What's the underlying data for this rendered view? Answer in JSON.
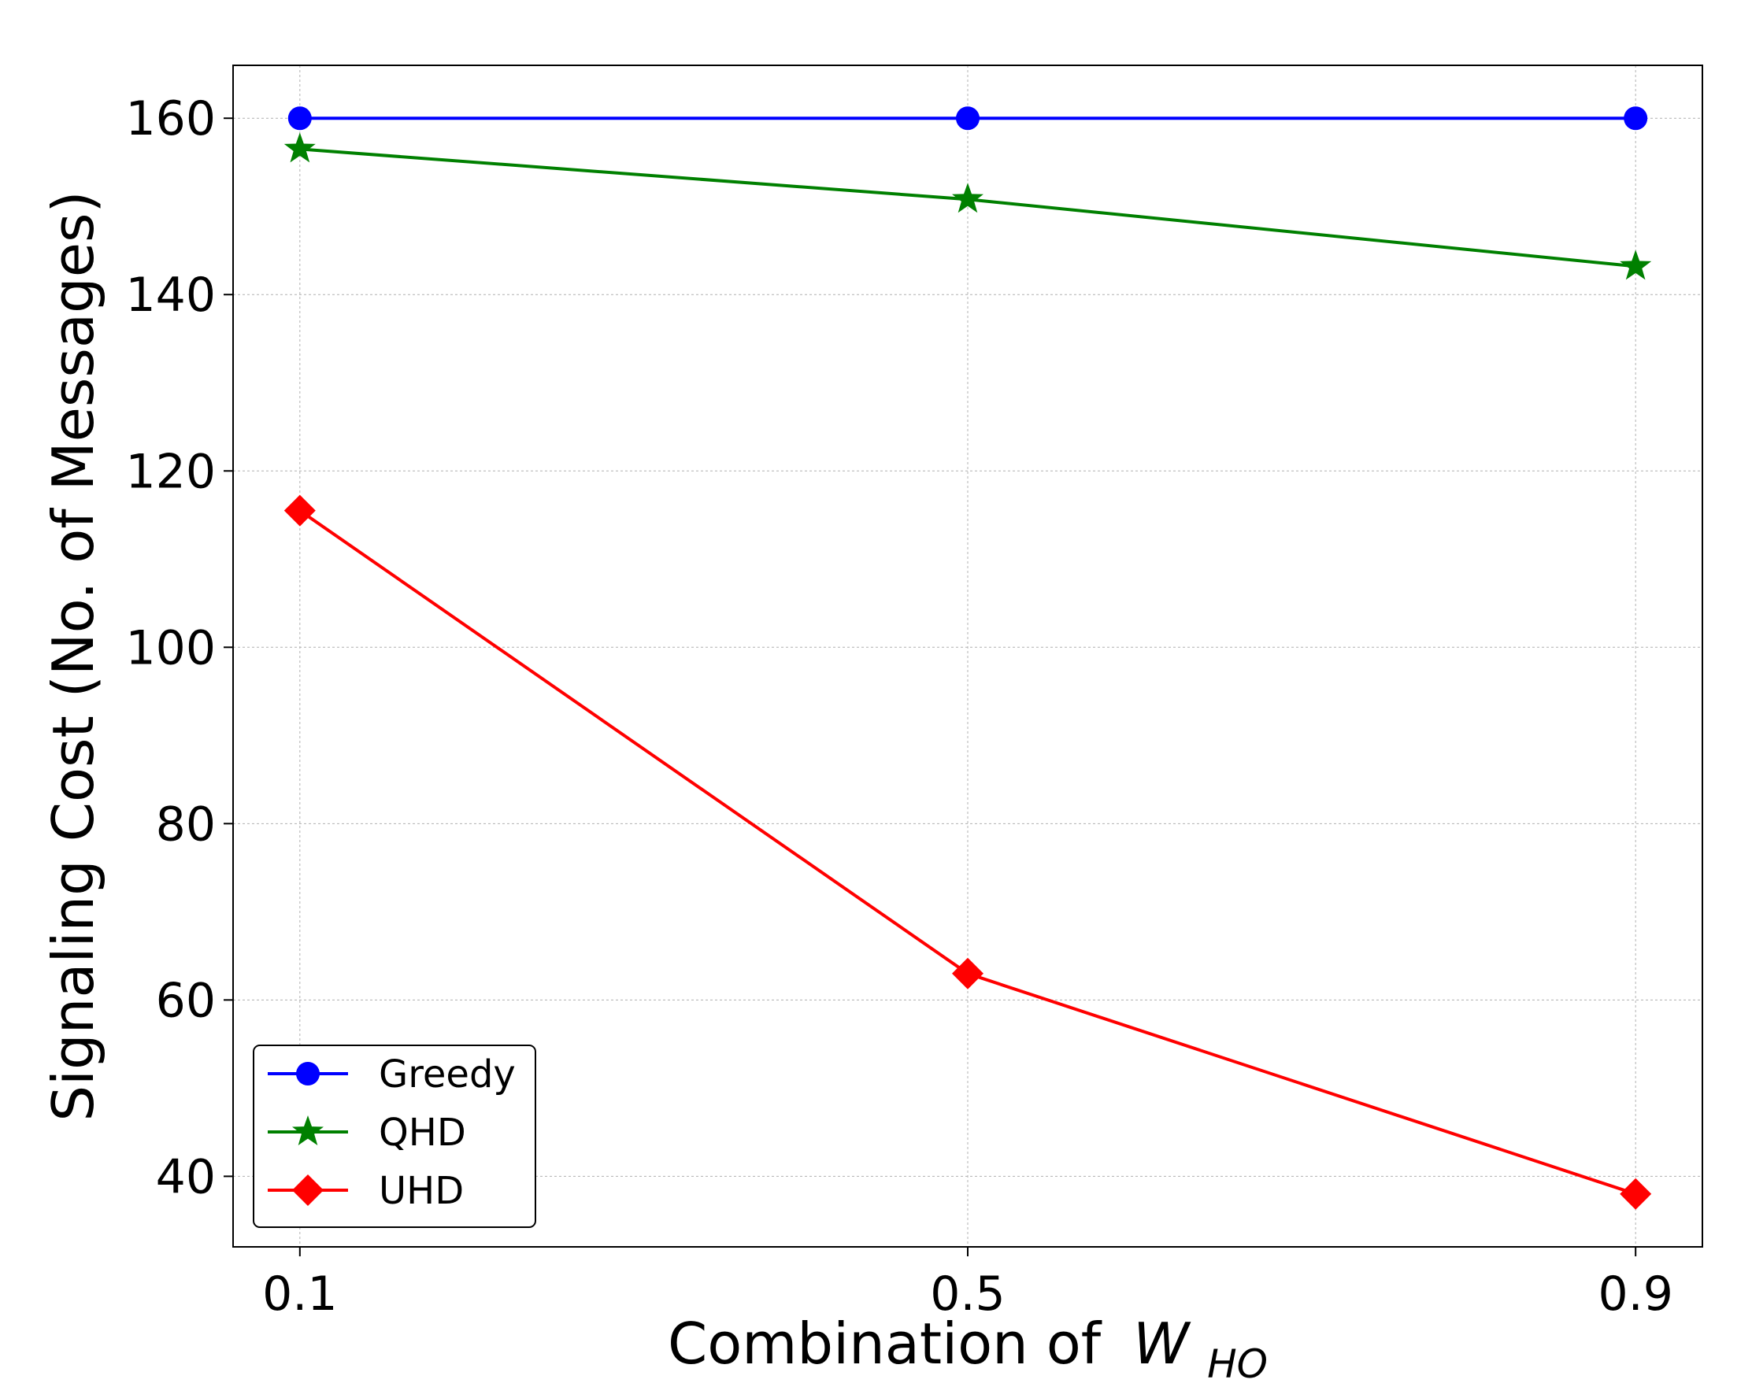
{
  "chart_data": {
    "type": "line",
    "title": "",
    "xlabel": "Combination of",
    "xlabel_symbol": "W",
    "xlabel_subscript": "HO",
    "ylabel": "Signaling Cost (No. of Messages)",
    "categories": [
      "0.1",
      "0.5",
      "0.9"
    ],
    "x": [
      0.1,
      0.5,
      0.9
    ],
    "xlim": [
      0.06,
      0.94
    ],
    "ylim": [
      32,
      166
    ],
    "yticks": [
      40,
      60,
      80,
      100,
      120,
      140,
      160
    ],
    "grid": true,
    "legend_position": "lower-left",
    "series": [
      {
        "name": "Greedy",
        "values": [
          160,
          160,
          160
        ],
        "color": "#0000ff",
        "marker": "circle"
      },
      {
        "name": "QHD",
        "values": [
          156.5,
          150.8,
          143.2
        ],
        "color": "#008000",
        "marker": "star"
      },
      {
        "name": "UHD",
        "values": [
          115.5,
          63,
          38
        ],
        "color": "#ff0000",
        "marker": "diamond"
      }
    ]
  }
}
